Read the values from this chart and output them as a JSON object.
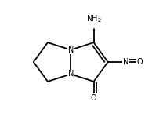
{
  "bg_color": "#ffffff",
  "line_color": "#000000",
  "lw": 1.3,
  "dbo": 0.018,
  "figsize": [
    1.94,
    1.58
  ],
  "dpi": 100,
  "xlim": [
    0.1,
    0.95
  ],
  "ylim": [
    0.1,
    0.92
  ],
  "fs": 7.0
}
